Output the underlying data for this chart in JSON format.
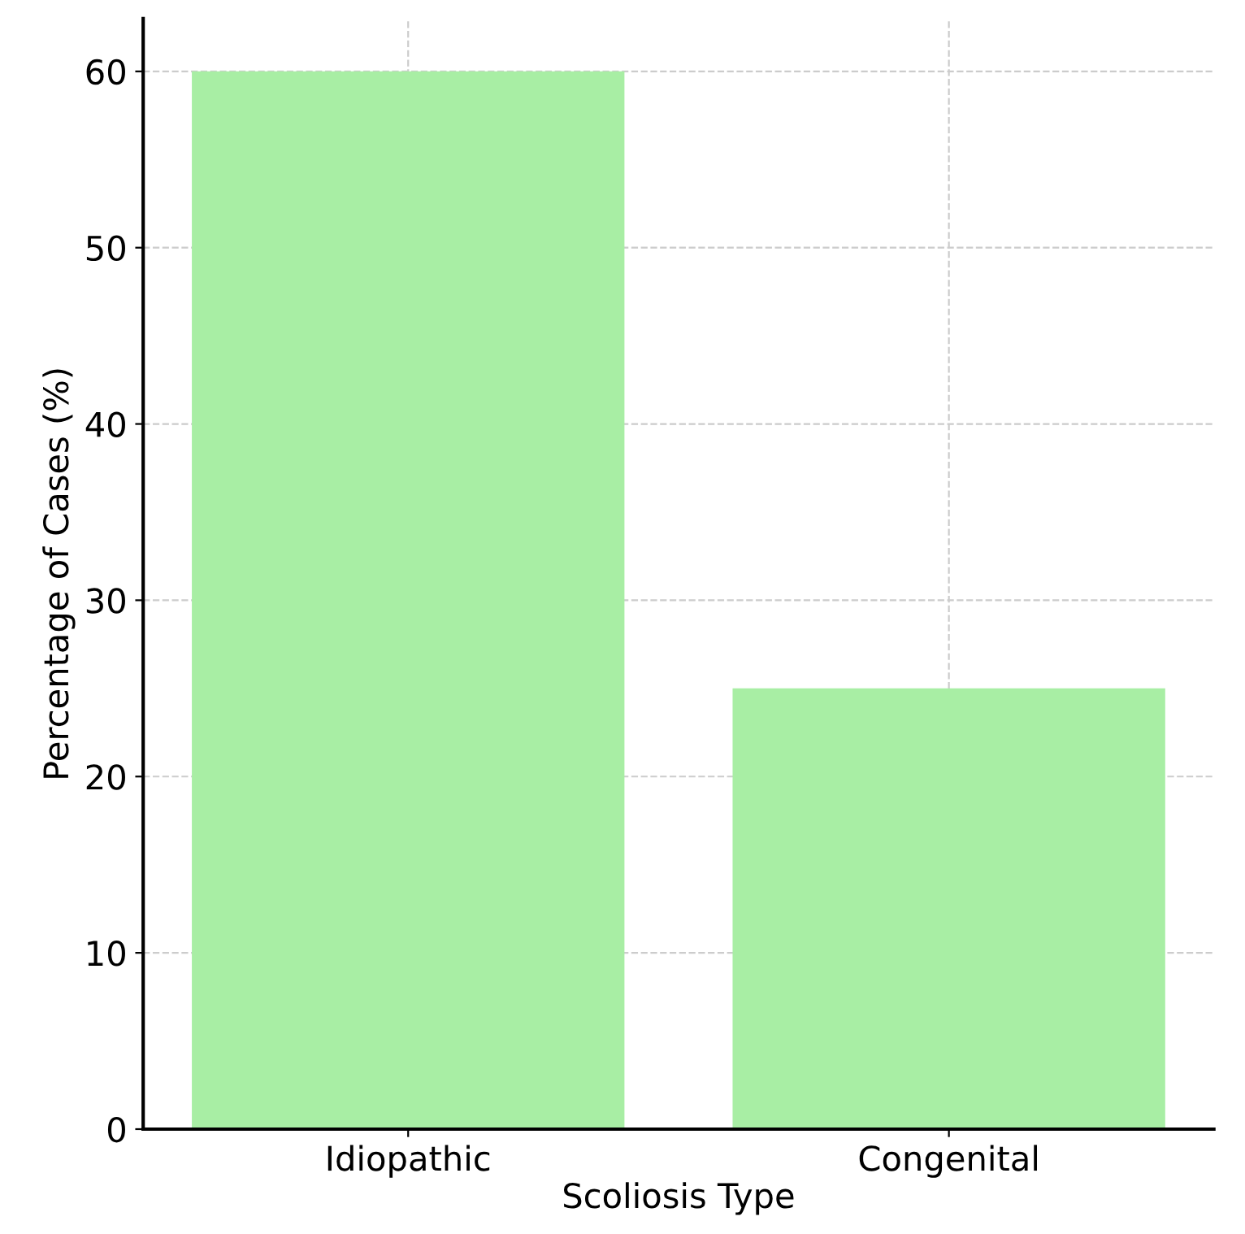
{
  "chart_data": {
    "type": "bar",
    "xlabel": "Scoliosis Type",
    "ylabel": "Percentage of Cases (%)",
    "categories": [
      "Idiopathic",
      "Congenital"
    ],
    "values": [
      60,
      25
    ],
    "color": "#a8eea4",
    "ylim": [
      0,
      63
    ],
    "yticks": [
      0,
      10,
      20,
      30,
      40,
      50,
      60
    ],
    "grid": true
  }
}
